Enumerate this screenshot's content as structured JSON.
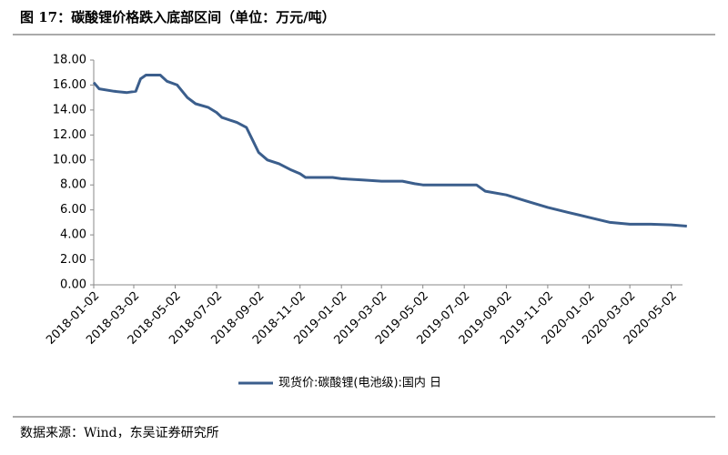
{
  "chart_data": {
    "type": "line",
    "title": "图 17：碳酸锂价格跌入底部区间（单位：万元/吨）",
    "source": "数据来源：Wind，东吴证券研究所",
    "x": [
      "2018-01-02",
      "2018-01-10",
      "2018-02-01",
      "2018-02-20",
      "2018-03-05",
      "2018-03-12",
      "2018-03-20",
      "2018-04-10",
      "2018-04-20",
      "2018-05-05",
      "2018-05-20",
      "2018-06-01",
      "2018-06-20",
      "2018-07-02",
      "2018-07-10",
      "2018-08-01",
      "2018-08-15",
      "2018-08-25",
      "2018-09-02",
      "2018-09-15",
      "2018-10-02",
      "2018-10-20",
      "2018-11-02",
      "2018-11-10",
      "2018-12-02",
      "2018-12-20",
      "2019-01-02",
      "2019-02-02",
      "2019-03-02",
      "2019-04-02",
      "2019-04-20",
      "2019-05-02",
      "2019-06-02",
      "2019-07-02",
      "2019-07-20",
      "2019-08-02",
      "2019-09-02",
      "2019-10-02",
      "2019-11-02",
      "2019-12-02",
      "2020-01-02",
      "2020-02-02",
      "2020-03-02",
      "2020-04-02",
      "2020-05-02",
      "2020-05-25"
    ],
    "series": [
      {
        "name": "现货价:碳酸锂(电池级):国内 日",
        "color": "#3b5e8c",
        "values": [
          16.2,
          15.7,
          15.5,
          15.4,
          15.5,
          16.5,
          16.8,
          16.8,
          16.3,
          16.0,
          15.0,
          14.5,
          14.2,
          13.8,
          13.4,
          13.0,
          12.6,
          11.5,
          10.6,
          10.0,
          9.7,
          9.2,
          8.9,
          8.6,
          8.6,
          8.6,
          8.5,
          8.4,
          8.3,
          8.3,
          8.1,
          8.0,
          8.0,
          8.0,
          8.0,
          7.5,
          7.2,
          6.7,
          6.2,
          5.8,
          5.4,
          5.0,
          4.85,
          4.85,
          4.8,
          4.7
        ]
      }
    ],
    "xlim": [
      "2018-01-02",
      "2020-06-01"
    ],
    "xticks": [
      "2018-01-02",
      "2018-03-02",
      "2018-05-02",
      "2018-07-02",
      "2018-09-02",
      "2018-11-02",
      "2019-01-02",
      "2019-03-02",
      "2019-05-02",
      "2019-07-02",
      "2019-09-02",
      "2019-11-02",
      "2020-01-02",
      "2020-03-02",
      "2020-05-02"
    ],
    "ylim": [
      0,
      18
    ],
    "yticks": [
      {
        "value": 0,
        "label": "0.00"
      },
      {
        "value": 2,
        "label": "2.00"
      },
      {
        "value": 4,
        "label": "4.00"
      },
      {
        "value": 6,
        "label": "6.00"
      },
      {
        "value": 8,
        "label": "8.00"
      },
      {
        "value": 10,
        "label": "10.00"
      },
      {
        "value": 12,
        "label": "12.00"
      },
      {
        "value": 14,
        "label": "14.00"
      },
      {
        "value": 16,
        "label": "16.00"
      },
      {
        "value": 18,
        "label": "18.00"
      }
    ]
  }
}
